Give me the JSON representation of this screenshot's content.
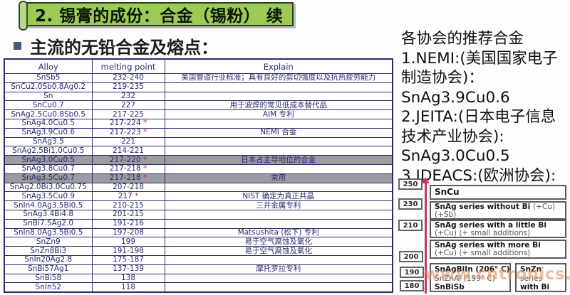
{
  "slide": {
    "title": "2. 锡膏的成份：合金（锡粉） 续",
    "subtitle": "主流的无铅合金及熔点："
  },
  "table": {
    "columns": [
      "Alloy",
      "melting point",
      "Explain"
    ],
    "rows": [
      {
        "alloy": "SnSb5",
        "mp": "232-240",
        "star": false,
        "explain": "美国管道行业标准；具有良好的剪切强度以及抗热疲劳能力",
        "gray": false
      },
      {
        "alloy": "SnCu2.0Sb0.8Ag0.2",
        "mp": "219-235",
        "star": false,
        "explain": "",
        "gray": false
      },
      {
        "alloy": "Sn",
        "mp": "232",
        "star": false,
        "explain": "",
        "gray": false
      },
      {
        "alloy": "SnCu0.7",
        "mp": "227",
        "star": false,
        "explain": "用于波焊的常见低成本替代品",
        "gray": false
      },
      {
        "alloy": "SnAg2.5Cu0.8Sb0.5",
        "mp": "217-225",
        "star": false,
        "explain": "AIM 专利",
        "gray": false
      },
      {
        "alloy": "SnAg4.0Cu0.5",
        "mp": "217-224",
        "star": true,
        "explain": "",
        "gray": false
      },
      {
        "alloy": "SnAg3.9Cu0.6",
        "mp": "217-223",
        "star": true,
        "explain": "NEMI 合金",
        "gray": false
      },
      {
        "alloy": "SnAg3.5",
        "mp": "221",
        "star": false,
        "explain": "",
        "gray": false
      },
      {
        "alloy": "SnAg2.5Bi1.0Cu0.5",
        "mp": "214-221",
        "star": false,
        "explain": "",
        "gray": false
      },
      {
        "alloy": "SnAg3.0Cu0.5",
        "mp": "217-220",
        "star": true,
        "explain": "日本占主导地位的合金",
        "gray": true
      },
      {
        "alloy": "SnAg3.8Cu0.7",
        "mp": "217-218",
        "star": true,
        "explain": "",
        "gray": false
      },
      {
        "alloy": "SnAg3.5Cu0.7",
        "mp": "217-218",
        "star": true,
        "explain": "常用",
        "gray": true
      },
      {
        "alloy": "SnAg2.0Bi3.0Cu0.75",
        "mp": "207-218",
        "star": false,
        "explain": "",
        "gray": false
      },
      {
        "alloy": "SnAg3.5Cu0.9",
        "mp": "217",
        "star": true,
        "explain": "NIST 确定为真正共晶",
        "gray": false
      },
      {
        "alloy": "SnIn4.0Ag3.5Bi0.5",
        "mp": "210-215",
        "star": false,
        "explain": "三井金属专利",
        "gray": false
      },
      {
        "alloy": "SnAg3.4Bi4.8",
        "mp": "201-215",
        "star": false,
        "explain": "",
        "gray": false
      },
      {
        "alloy": "SnBi7.5Ag2.0",
        "mp": "191-216",
        "star": false,
        "explain": "",
        "gray": false
      },
      {
        "alloy": "SnIn8.0Ag3.5Bi0.5",
        "mp": "197-208",
        "star": false,
        "explain": "Matsushita (松下) 专利",
        "gray": false
      },
      {
        "alloy": "SnZn9",
        "mp": "199",
        "star": false,
        "explain": "易于空气腐蚀及氧化",
        "gray": false
      },
      {
        "alloy": "SnZn8Bi3",
        "mp": "191-198",
        "star": false,
        "explain": "易于空气腐蚀及氧化",
        "gray": false
      },
      {
        "alloy": "SnIn20Ag2.8",
        "mp": "175-187",
        "star": false,
        "explain": "",
        "gray": false
      },
      {
        "alloy": "SnBi57Ag1",
        "mp": "137-139",
        "star": false,
        "explain": "摩托罗拉专利",
        "gray": false
      },
      {
        "alloy": "SnBi58",
        "mp": "138",
        "star": false,
        "explain": "",
        "gray": false
      },
      {
        "alloy": "SnIn52",
        "mp": "118",
        "star": false,
        "explain": "",
        "gray": false
      }
    ]
  },
  "recommendations": {
    "lines": [
      "各协会的推荐合金",
      "1.NEMI:(美国国家电子",
      "制造协会)：",
      "SnAg3.9Cu0.6",
      "2.JEITA:(日本电子信息",
      "技术产业协会):",
      "SnAg3.0Cu0.5",
      "3.IDEACS:(欧洲协会):"
    ]
  },
  "diagram": {
    "scale_labels": [
      "250",
      "230",
      "210",
      "200",
      "190",
      "180"
    ],
    "boxes": [
      {
        "lines": [
          [
            {
              "t": "SnCu",
              "s": "b"
            }
          ]
        ]
      },
      {
        "lines": [
          [
            {
              "t": "SnAg series without Bi ",
              "s": "b"
            },
            {
              "t": "(+Cu)",
              "s": "n"
            }
          ],
          [
            {
              "t": "(+Sb)",
              "s": "n"
            }
          ]
        ]
      },
      {
        "lines": [
          [
            {
              "t": "SnAg series with a little Bi",
              "s": "b"
            }
          ],
          [
            {
              "t": "(+Cu) (+ small additions)",
              "s": "n"
            }
          ]
        ]
      },
      {
        "lines": [
          [
            {
              "t": "SnAg series with more Bi",
              "s": "b"
            }
          ],
          [
            {
              "t": "(+Cu) (+ small additions)",
              "s": "n"
            }
          ]
        ]
      },
      {
        "lines": [
          [
            {
              "t": "SnAgBiIn (206° C)",
              "s": "b"
            }
          ],
          [
            {
              "t": "SnZnAl (199° C)",
              "s": "n"
            }
          ],
          [
            {
              "t": "SnBiSb",
              "s": "b"
            }
          ]
        ]
      },
      {
        "lines": [
          [
            {
              "t": "SnZn",
              "s": "b"
            }
          ],
          [
            {
              "t": "series",
              "s": "n"
            }
          ],
          [
            {
              "t": "with Bi",
              "s": "b"
            }
          ]
        ]
      }
    ]
  },
  "watermark": "www.cntronics.com",
  "colors": {
    "banner_green": "#9bcb55",
    "table_ink": "#2b2b6e",
    "highlight_gray": "#9b9ba0",
    "arrow_pink": "#c8356b",
    "watermark_orange": "#e2945e"
  }
}
